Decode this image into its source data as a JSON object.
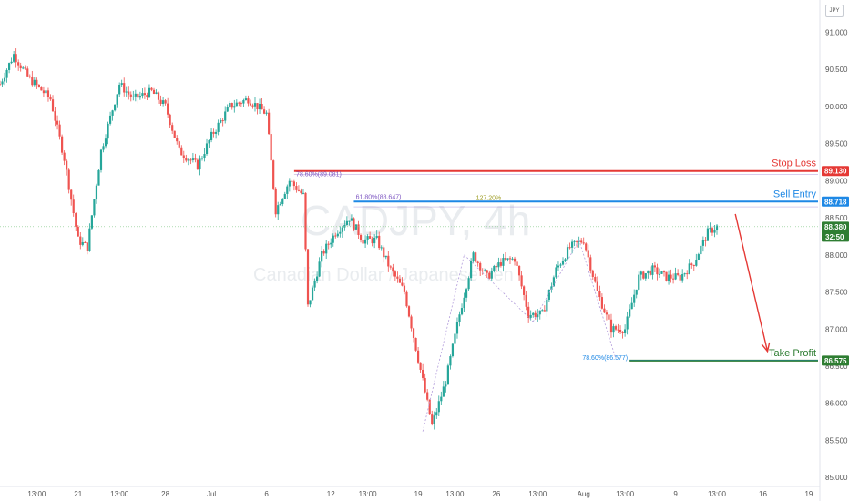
{
  "currency_badge": "JPY",
  "watermark": {
    "symbol": "CADJPY, 4h",
    "name": "Canadian Dollar / Japanese Yen"
  },
  "chart_data": {
    "type": "candlestick",
    "y_range": [
      84.88,
      91.36
    ],
    "y_ticks": [
      "91.000",
      "90.500",
      "90.000",
      "89.500",
      "89.000",
      "88.500",
      "88.000",
      "87.500",
      "87.000",
      "86.500",
      "86.000",
      "85.500",
      "85.000"
    ],
    "x_ticks": [
      "13:00",
      "21",
      "13:00",
      "28",
      "Jul",
      "6",
      "12",
      "13:00",
      "19",
      "13:00",
      "26",
      "13:00",
      "Aug",
      "13:00",
      "9",
      "13:00",
      "16",
      "19"
    ],
    "x_range": [
      0,
      178
    ],
    "x_tick_positions": [
      8,
      17,
      26,
      36,
      46,
      58,
      72,
      80,
      91,
      99,
      108,
      117,
      127,
      136,
      147,
      156,
      166,
      176
    ],
    "price_path": [
      [
        0,
        90.3
      ],
      [
        3,
        90.7
      ],
      [
        6,
        90.4
      ],
      [
        11,
        90.1
      ],
      [
        14,
        89.3
      ],
      [
        17,
        88.2
      ],
      [
        19,
        88.1
      ],
      [
        22,
        89.4
      ],
      [
        26,
        90.3
      ],
      [
        29,
        90.1
      ],
      [
        33,
        90.2
      ],
      [
        36,
        90.0
      ],
      [
        39,
        89.4
      ],
      [
        43,
        89.2
      ],
      [
        46,
        89.6
      ],
      [
        50,
        90.0
      ],
      [
        54,
        90.1
      ],
      [
        58,
        89.9
      ],
      [
        60,
        88.6
      ],
      [
        63,
        89.0
      ],
      [
        66,
        88.8
      ],
      [
        67,
        87.3
      ],
      [
        70,
        88.0
      ],
      [
        73,
        88.3
      ],
      [
        76,
        88.5
      ],
      [
        79,
        88.2
      ],
      [
        82,
        88.2
      ],
      [
        85,
        87.8
      ],
      [
        88,
        87.5
      ],
      [
        91,
        86.6
      ],
      [
        94,
        85.7
      ],
      [
        97,
        86.3
      ],
      [
        100,
        87.2
      ],
      [
        103,
        88.0
      ],
      [
        106,
        87.7
      ],
      [
        109,
        87.9
      ],
      [
        112,
        87.95
      ],
      [
        115,
        87.2
      ],
      [
        118,
        87.2
      ],
      [
        121,
        87.8
      ],
      [
        124,
        88.1
      ],
      [
        127,
        88.2
      ],
      [
        130,
        87.5
      ],
      [
        133,
        87.0
      ],
      [
        136,
        87.0
      ],
      [
        139,
        87.7
      ],
      [
        142,
        87.8
      ],
      [
        145,
        87.7
      ],
      [
        148,
        87.7
      ],
      [
        151,
        87.9
      ],
      [
        154,
        88.3
      ],
      [
        156,
        88.38
      ]
    ],
    "zigzag_points": [
      [
        92,
        85.62
      ],
      [
        101,
        88.0
      ],
      [
        116,
        87.1
      ],
      [
        126,
        88.2
      ],
      [
        134,
        86.6
      ]
    ],
    "last_price_line": 88.38,
    "levels": [
      {
        "name": "Stop Loss",
        "price": 89.13,
        "tag": "89.130",
        "color": "#e53935",
        "fib": "78.60%(89.081)",
        "fib_price": 89.081,
        "x_start": 64,
        "label_color": "#7e57c2"
      },
      {
        "name": "Sell Entry",
        "price": 88.718,
        "tag": "88.718",
        "color": "#1e88e5",
        "fib": "61.80%(88.647)",
        "fib_price": 88.647,
        "ext": "127.20%",
        "x_start": 77,
        "label_color": "#7e57c2"
      },
      {
        "name": "Take Profit",
        "price": 86.575,
        "tag": "86.575",
        "color": "#2e7d32",
        "fib": "78.60%(86.577)",
        "fib_price": 86.577,
        "x_start": 137,
        "label_color": "#1e88e5"
      }
    ],
    "current_price_tag": "88.380",
    "current_price_timer": "32:50",
    "arrow": {
      "from": [
        160,
        88.55
      ],
      "to": [
        167,
        86.7
      ],
      "color": "#e53935"
    }
  }
}
